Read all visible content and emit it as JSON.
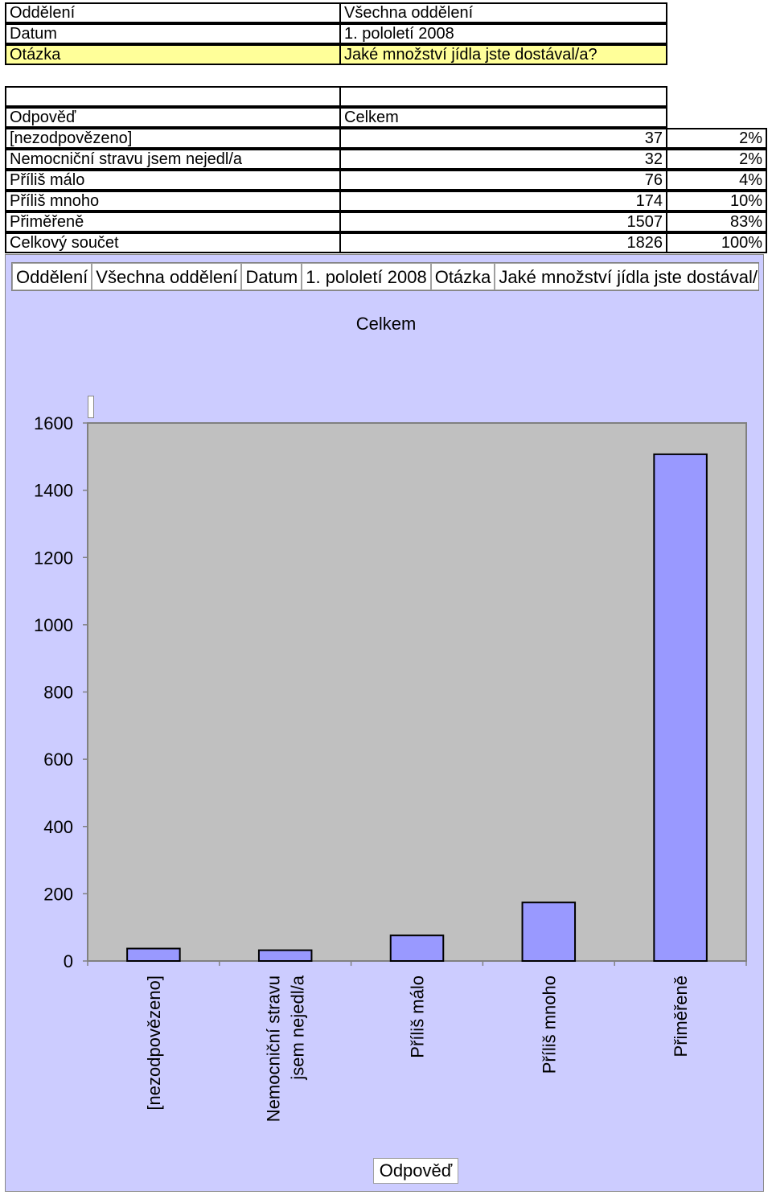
{
  "header_table": [
    {
      "label": "Oddělení",
      "value": "Všechna oddělení"
    },
    {
      "label": "Datum",
      "value": "1. pololetí 2008"
    },
    {
      "label": "Otázka",
      "value": "Jaké množství jídla jste dostával/a?"
    }
  ],
  "data_table": {
    "col_header_left": "Odpověď",
    "col_header_right": "Celkem",
    "rows": [
      {
        "label": "[nezodpovězeno]",
        "count": "37",
        "pct": "2%"
      },
      {
        "label": "Nemocniční stravu jsem nejedl/a",
        "count": "32",
        "pct": "2%"
      },
      {
        "label": "Příliš málo",
        "count": "76",
        "pct": "4%"
      },
      {
        "label": "Příliš mnoho",
        "count": "174",
        "pct": "10%"
      },
      {
        "label": "Přiměřeně",
        "count": "1507",
        "pct": "83%"
      },
      {
        "label": "Celkový součet",
        "count": "1826",
        "pct": "100%"
      }
    ]
  },
  "pivot_fields": [
    "Oddělení",
    "Všechna oddělení",
    "Datum",
    "1. pololetí 2008",
    "Otázka",
    "Jaké množství jídla jste dostával/a?"
  ],
  "colors": {
    "chart_bg": "#ccccff",
    "plot_bg": "#c0c0c0",
    "bar_fill": "#9999ff",
    "highlight": "#ffff99"
  },
  "chart_data": {
    "type": "bar",
    "title": "Celkem",
    "xlabel": "Odpověď",
    "ylabel": "",
    "categories": [
      "[nezodpovězeno]",
      "Nemocniční stravu jsem nejedl/a",
      "Příliš málo",
      "Příliš mnoho",
      "Přiměřeně"
    ],
    "category_lines": [
      [
        "[nezodpovězeno]"
      ],
      [
        "Nemocniční stravu",
        "jsem nejedl/a"
      ],
      [
        "Příliš málo"
      ],
      [
        "Příliš mnoho"
      ],
      [
        "Přiměřeně"
      ]
    ],
    "values": [
      37,
      32,
      76,
      174,
      1507
    ],
    "ylim": [
      0,
      1600
    ],
    "yticks": [
      "0",
      "200",
      "400",
      "600",
      "800",
      "1000",
      "1200",
      "1400",
      "1600"
    ],
    "grid": false,
    "legend": "none"
  }
}
